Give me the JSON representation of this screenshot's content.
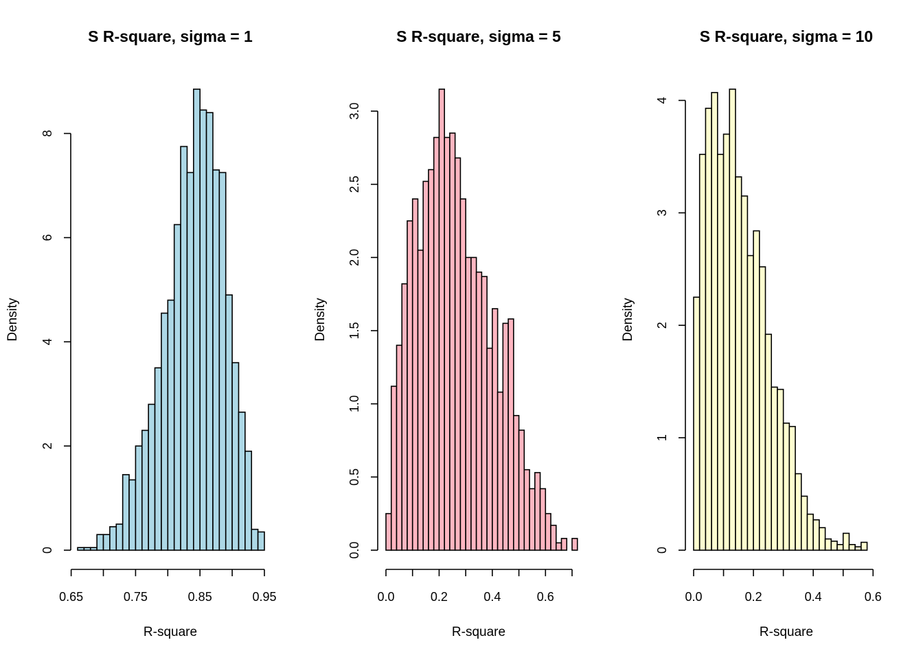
{
  "chart_data": [
    {
      "type": "histogram",
      "title": "S R-square, sigma = 1",
      "xlabel": "R-square",
      "ylabel": "Density",
      "fill_color": "#ADD8E6",
      "border_color": "#000000",
      "xlim": [
        0.66,
        0.95
      ],
      "ylim": [
        0,
        8.85
      ],
      "x_ticks": [
        0.65,
        0.7,
        0.75,
        0.8,
        0.85,
        0.9,
        0.95
      ],
      "x_tick_labels": [
        "0.65",
        "",
        "0.75",
        "",
        "0.85",
        "",
        "0.95"
      ],
      "y_ticks": [
        0,
        2,
        4,
        6,
        8
      ],
      "y_tick_labels": [
        "0",
        "2",
        "4",
        "6",
        "8"
      ],
      "bin_start": 0.66,
      "bin_width": 0.01,
      "values": [
        0.05,
        0.05,
        0.05,
        0.3,
        0.3,
        0.45,
        0.5,
        1.45,
        1.35,
        2.0,
        2.3,
        2.8,
        3.5,
        4.55,
        4.8,
        6.25,
        7.75,
        7.25,
        8.85,
        8.45,
        8.4,
        7.3,
        7.25,
        4.9,
        3.6,
        2.65,
        1.9,
        0.4,
        0.35
      ]
    },
    {
      "type": "histogram",
      "title": "S R-square, sigma = 5",
      "xlabel": "R-square",
      "ylabel": "Density",
      "fill_color": "#FFB6C1",
      "border_color": "#000000",
      "xlim": [
        0.0,
        0.7
      ],
      "ylim": [
        0,
        3.15
      ],
      "x_ticks": [
        0.0,
        0.1,
        0.2,
        0.3,
        0.4,
        0.5,
        0.6,
        0.7
      ],
      "x_tick_labels": [
        "0.0",
        "",
        "0.2",
        "",
        "0.4",
        "",
        "0.6",
        ""
      ],
      "y_ticks": [
        0.0,
        0.5,
        1.0,
        1.5,
        2.0,
        2.5,
        3.0
      ],
      "y_tick_labels": [
        "0.0",
        "0.5",
        "1.0",
        "1.5",
        "2.0",
        "2.5",
        "3.0"
      ],
      "bin_start": 0.0,
      "bin_width": 0.02,
      "values": [
        0.25,
        1.12,
        1.4,
        1.82,
        2.25,
        2.4,
        2.05,
        2.52,
        2.6,
        2.82,
        3.15,
        2.82,
        2.85,
        2.68,
        2.4,
        2.0,
        2.0,
        1.9,
        1.87,
        1.38,
        1.65,
        1.08,
        1.55,
        1.58,
        0.92,
        0.82,
        0.55,
        0.42,
        0.53,
        0.42,
        0.25,
        0.17,
        0.05,
        0.08,
        0.0,
        0.08
      ]
    },
    {
      "type": "histogram",
      "title": "S R-square, sigma = 10",
      "xlabel": "R-square",
      "ylabel": "Density",
      "fill_color": "#FFFFD0",
      "border_color": "#000000",
      "xlim": [
        0.0,
        0.62
      ],
      "ylim": [
        0,
        4.1
      ],
      "x_ticks": [
        0.0,
        0.1,
        0.2,
        0.3,
        0.4,
        0.5,
        0.6
      ],
      "x_tick_labels": [
        "0.0",
        "",
        "0.2",
        "",
        "0.4",
        "",
        "0.6"
      ],
      "y_ticks": [
        0,
        1,
        2,
        3,
        4
      ],
      "y_tick_labels": [
        "0",
        "1",
        "2",
        "3",
        "4"
      ],
      "bin_start": 0.0,
      "bin_width": 0.02,
      "values": [
        2.25,
        3.52,
        3.93,
        4.07,
        3.52,
        3.7,
        4.1,
        3.32,
        3.15,
        2.62,
        2.84,
        2.52,
        1.92,
        1.45,
        1.43,
        1.13,
        1.1,
        0.68,
        0.48,
        0.32,
        0.27,
        0.2,
        0.1,
        0.08,
        0.05,
        0.15,
        0.05,
        0.03,
        0.07
      ]
    }
  ]
}
